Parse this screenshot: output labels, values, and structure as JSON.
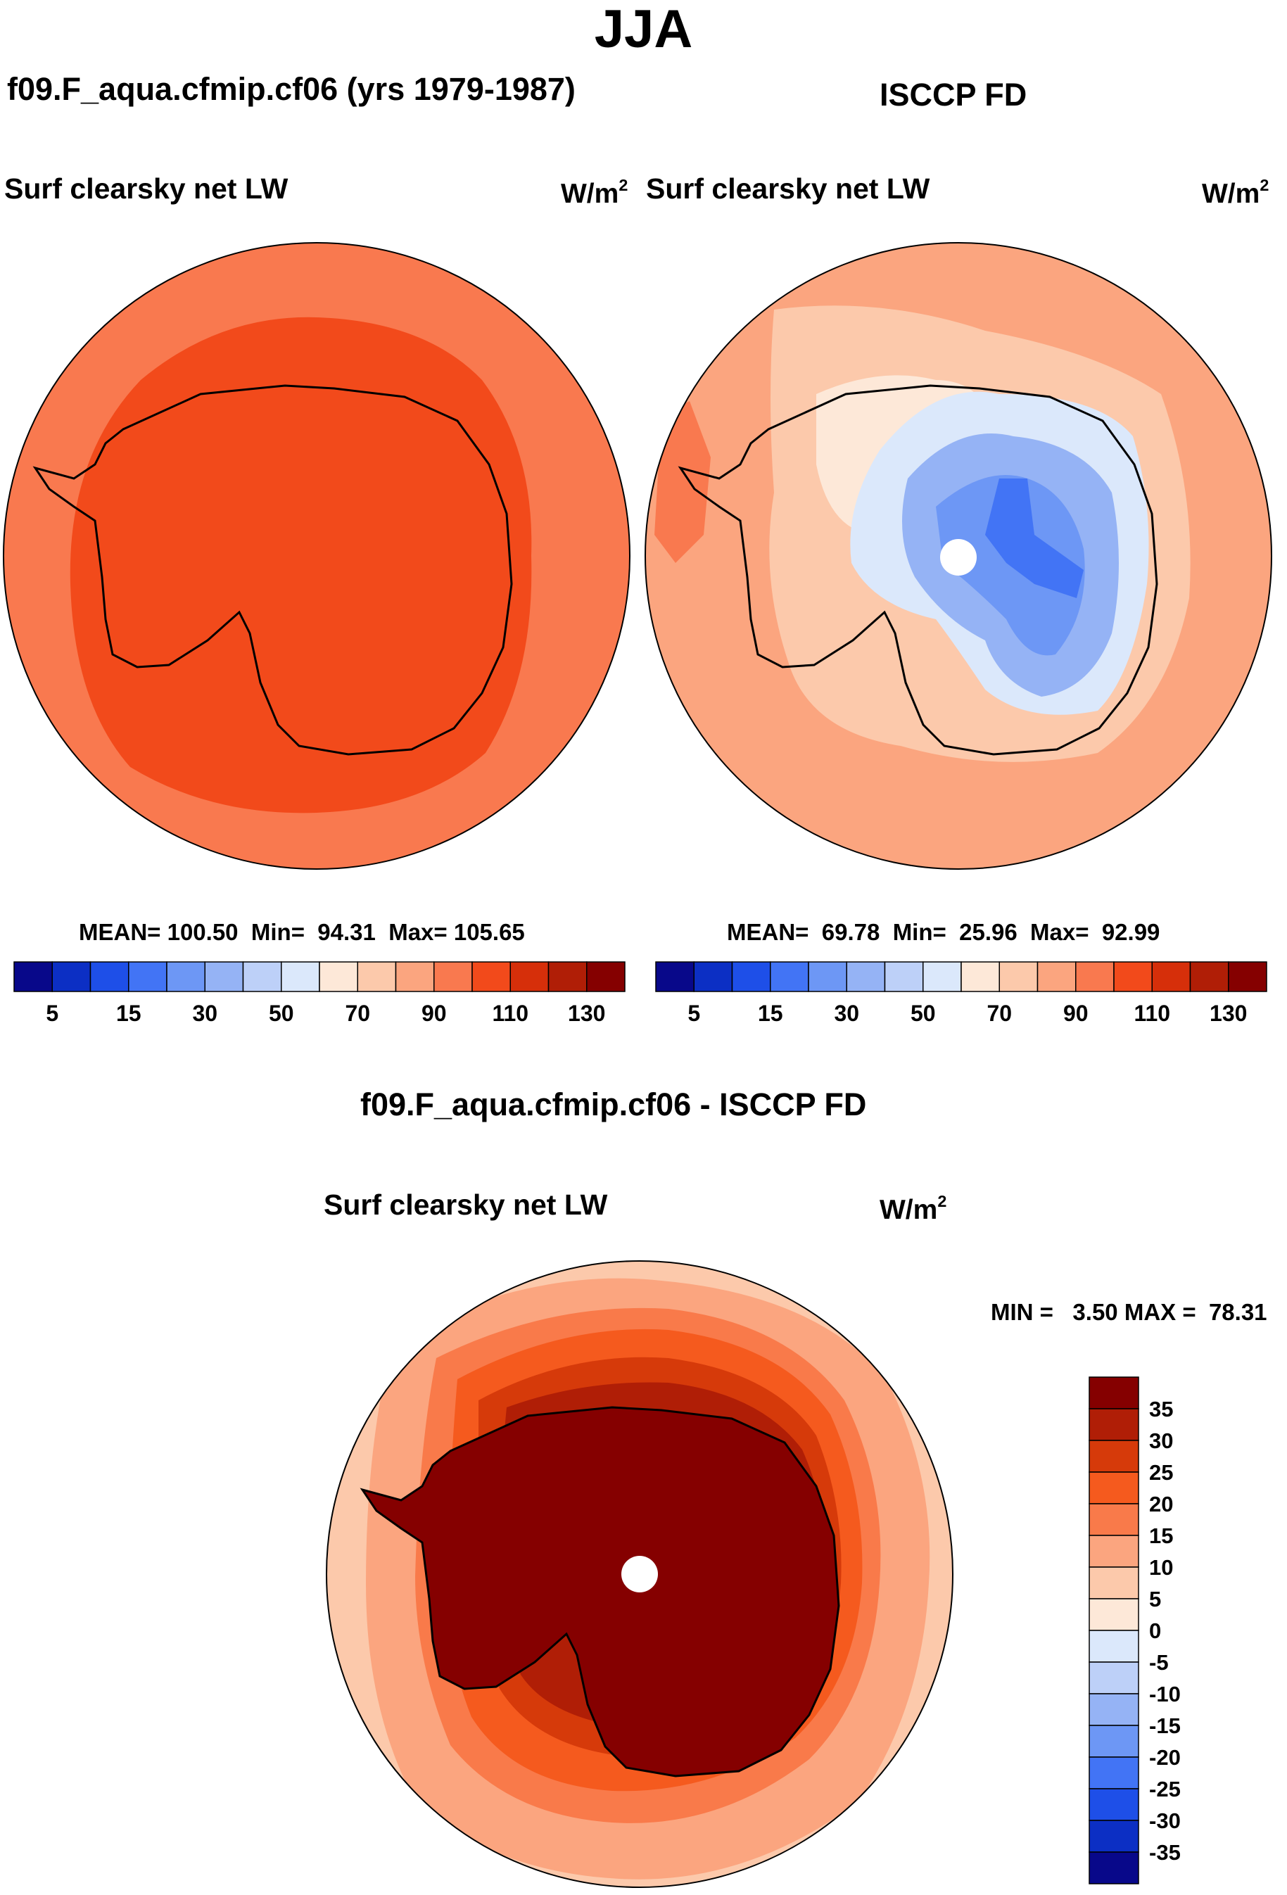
{
  "season": "JJA",
  "panels": [
    {
      "id": "model",
      "header": "f09.F_aqua.cfmip.cf06 (yrs 1979-1987)",
      "variable": "Surf clearsky net LW",
      "units_base": "W/m",
      "units_exp": "2",
      "stats": "MEAN= 100.50  Min=  94.31  Max= 105.65"
    },
    {
      "id": "obs",
      "header": "ISCCP FD",
      "variable": "Surf clearsky net LW",
      "units_base": "W/m",
      "units_exp": "2",
      "stats": "MEAN=  69.78  Min=  25.96  Max=  92.99"
    },
    {
      "id": "diff",
      "header": "f09.F_aqua.cfmip.cf06 - ISCCP FD",
      "variable": "Surf clearsky net LW",
      "units_base": "W/m",
      "units_exp": "2",
      "stats": "MIN =   3.50 MAX =  78.31"
    }
  ],
  "abs_colorbar": {
    "labels": [
      "5",
      "15",
      "30",
      "50",
      "70",
      "90",
      "110",
      "130"
    ],
    "colors": [
      "#08088a",
      "#0c2fc4",
      "#1e4fe8",
      "#4274f5",
      "#6d97f5",
      "#95b3f5",
      "#bdd0f8",
      "#dbe8fb",
      "#fde8d8",
      "#fcc9ab",
      "#fba57f",
      "#f9794f",
      "#f24a1b",
      "#d62f0a",
      "#b01e06",
      "#850000"
    ]
  },
  "diff_colorbar": {
    "labels": [
      "35",
      "30",
      "25",
      "20",
      "15",
      "10",
      "5",
      "0",
      "-5",
      "-10",
      "-15",
      "-20",
      "-25",
      "-30",
      "-35"
    ],
    "colors": [
      "#850000",
      "#b01e06",
      "#d63a0a",
      "#f55a1e",
      "#f97a4a",
      "#fba57f",
      "#fcc9ab",
      "#fde8d8",
      "#dbe8fb",
      "#bdd0f8",
      "#95b3f5",
      "#6d97f5",
      "#4274f5",
      "#1e4fe8",
      "#0c2fc4",
      "#08088a"
    ]
  }
}
